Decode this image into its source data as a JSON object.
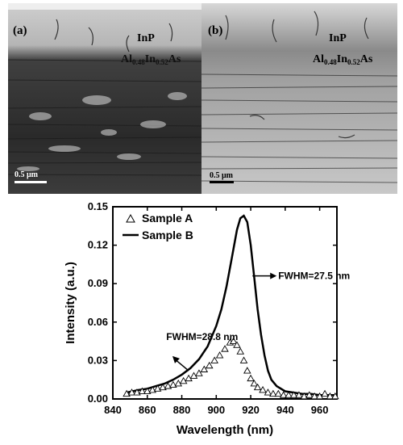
{
  "panel_a": {
    "label": "(a)",
    "top_layer": "InP",
    "alloy": {
      "el1": "Al",
      "sub1": "0.48",
      "el2": "In",
      "sub2": "0.52",
      "el3": "As"
    },
    "scale": "0.5 μm"
  },
  "panel_b": {
    "label": "(b)",
    "top_layer": "InP",
    "alloy": {
      "el1": "Al",
      "sub1": "0.48",
      "el2": "In",
      "sub2": "0.52",
      "el3": "As"
    },
    "scale": "0.5 μm"
  },
  "colors": {
    "bg": "#ffffff",
    "ink": "#000000",
    "tem_a_bg": "#3a3a3a",
    "tem_b_bg": "#9a9a9a"
  },
  "chart_data": {
    "type": "line",
    "xlabel": "Wavelength (nm)",
    "ylabel": "Intensity (a.u.)",
    "xlim": [
      840,
      970
    ],
    "ylim": [
      0,
      0.15
    ],
    "xticks": [
      840,
      860,
      880,
      900,
      920,
      940,
      960
    ],
    "yticks": [
      0.0,
      0.03,
      0.06,
      0.09,
      0.12,
      0.15
    ],
    "ytick_labels": [
      "0.00",
      "0.03",
      "0.06",
      "0.09",
      "0.12",
      "0.15"
    ],
    "series": [
      {
        "name": "Sample A",
        "marker": "open-triangle",
        "x": [
          848,
          851,
          854,
          857,
          860,
          863,
          866,
          869,
          872,
          875,
          878,
          881,
          884,
          887,
          890,
          893,
          896,
          899,
          902,
          905,
          908,
          910,
          912,
          914,
          916,
          918,
          920,
          922,
          924,
          927,
          930,
          933,
          936,
          939,
          942,
          945,
          948,
          951,
          954,
          957,
          960,
          963,
          966,
          969
        ],
        "y": [
          0.004,
          0.005,
          0.005,
          0.006,
          0.006,
          0.007,
          0.008,
          0.009,
          0.01,
          0.011,
          0.012,
          0.014,
          0.016,
          0.018,
          0.02,
          0.023,
          0.026,
          0.03,
          0.034,
          0.039,
          0.044,
          0.045,
          0.042,
          0.037,
          0.03,
          0.022,
          0.016,
          0.012,
          0.009,
          0.007,
          0.005,
          0.004,
          0.004,
          0.003,
          0.003,
          0.003,
          0.003,
          0.002,
          0.003,
          0.002,
          0.002,
          0.004,
          0.002,
          0.002
        ]
      },
      {
        "name": "Sample B",
        "marker": "none",
        "x": [
          848,
          855,
          860,
          865,
          870,
          875,
          880,
          885,
          890,
          895,
          900,
          903,
          906,
          909,
          912,
          914,
          916,
          918,
          920,
          922,
          924,
          926,
          928,
          930,
          932,
          935,
          940,
          945,
          950,
          955,
          960,
          965,
          970
        ],
        "y": [
          0.005,
          0.007,
          0.008,
          0.01,
          0.012,
          0.015,
          0.019,
          0.024,
          0.031,
          0.041,
          0.057,
          0.07,
          0.088,
          0.11,
          0.132,
          0.141,
          0.143,
          0.138,
          0.12,
          0.095,
          0.07,
          0.05,
          0.034,
          0.022,
          0.015,
          0.01,
          0.006,
          0.005,
          0.004,
          0.004,
          0.003,
          0.003,
          0.003
        ]
      }
    ],
    "annotations": [
      {
        "text": "FWHM=27.5 nm"
      },
      {
        "text": "FWHM=28.8 nm"
      }
    ],
    "legend_position": "top-left",
    "grid": false
  }
}
